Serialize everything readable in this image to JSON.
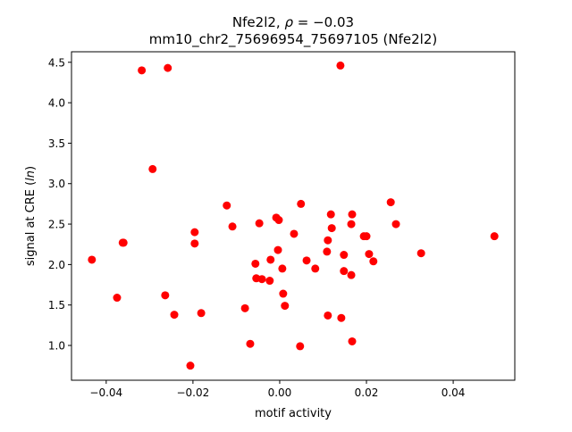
{
  "chart_data": {
    "type": "scatter",
    "title_line1_prefix": "Nfe2l2, ",
    "title_line1_symbol": "ρ",
    "title_line1_suffix": " = −0.03",
    "title_line2": "mm10_chr2_75696954_75697105 (Nfe2l2)",
    "xlabel": "motif activity",
    "ylabel_prefix": "signal at CRE (",
    "ylabel_italic": "ln",
    "ylabel_suffix": ")",
    "xlim": [
      -0.048,
      0.0542
    ],
    "ylim": [
      0.57,
      4.63
    ],
    "xticks": [
      -0.04,
      -0.02,
      0.0,
      0.02,
      0.04
    ],
    "xtick_labels": [
      "−0.04",
      "−0.02",
      "0.00",
      "0.02",
      "0.04"
    ],
    "yticks": [
      1.0,
      1.5,
      2.0,
      2.5,
      3.0,
      3.5,
      4.0,
      4.5
    ],
    "ytick_labels": [
      "1.0",
      "1.5",
      "2.0",
      "2.5",
      "3.0",
      "3.5",
      "4.0",
      "4.5"
    ],
    "color": "#ff0000",
    "grid": false,
    "points": [
      [
        -0.0433,
        2.06
      ],
      [
        -0.0375,
        1.59
      ],
      [
        -0.0362,
        2.27
      ],
      [
        -0.036,
        2.27
      ],
      [
        -0.0318,
        4.4
      ],
      [
        -0.0293,
        3.18
      ],
      [
        -0.0258,
        4.43
      ],
      [
        -0.0264,
        1.62
      ],
      [
        -0.0243,
        1.38
      ],
      [
        -0.0196,
        2.4
      ],
      [
        -0.0196,
        2.26
      ],
      [
        -0.0181,
        1.4
      ],
      [
        -0.0206,
        0.75
      ],
      [
        -0.0122,
        2.73
      ],
      [
        -0.0109,
        2.47
      ],
      [
        -0.008,
        1.46
      ],
      [
        -0.0068,
        1.02
      ],
      [
        -0.0056,
        2.01
      ],
      [
        -0.0054,
        1.83
      ],
      [
        -0.0041,
        1.82
      ],
      [
        -0.0047,
        2.51
      ],
      [
        -0.0021,
        2.06
      ],
      [
        -0.0023,
        1.8
      ],
      [
        -0.0008,
        2.58
      ],
      [
        -0.0002,
        2.55
      ],
      [
        -0.0004,
        2.18
      ],
      [
        0.0006,
        1.95
      ],
      [
        0.0008,
        1.64
      ],
      [
        0.0012,
        1.49
      ],
      [
        0.0033,
        2.38
      ],
      [
        0.0049,
        2.75
      ],
      [
        0.0047,
        0.99
      ],
      [
        0.0062,
        2.05
      ],
      [
        0.0082,
        1.95
      ],
      [
        0.0109,
        2.16
      ],
      [
        0.0111,
        2.3
      ],
      [
        0.0118,
        2.62
      ],
      [
        0.012,
        2.45
      ],
      [
        0.0111,
        1.37
      ],
      [
        0.014,
        4.46
      ],
      [
        0.0142,
        1.34
      ],
      [
        0.0148,
        2.12
      ],
      [
        0.0148,
        1.92
      ],
      [
        0.0165,
        2.5
      ],
      [
        0.0167,
        2.62
      ],
      [
        0.0165,
        1.87
      ],
      [
        0.0167,
        1.05
      ],
      [
        0.0194,
        2.35
      ],
      [
        0.02,
        2.35
      ],
      [
        0.0206,
        2.13
      ],
      [
        0.0216,
        2.04
      ],
      [
        0.0256,
        2.77
      ],
      [
        0.0268,
        2.5
      ],
      [
        0.0326,
        2.14
      ],
      [
        0.0495,
        2.35
      ]
    ]
  }
}
